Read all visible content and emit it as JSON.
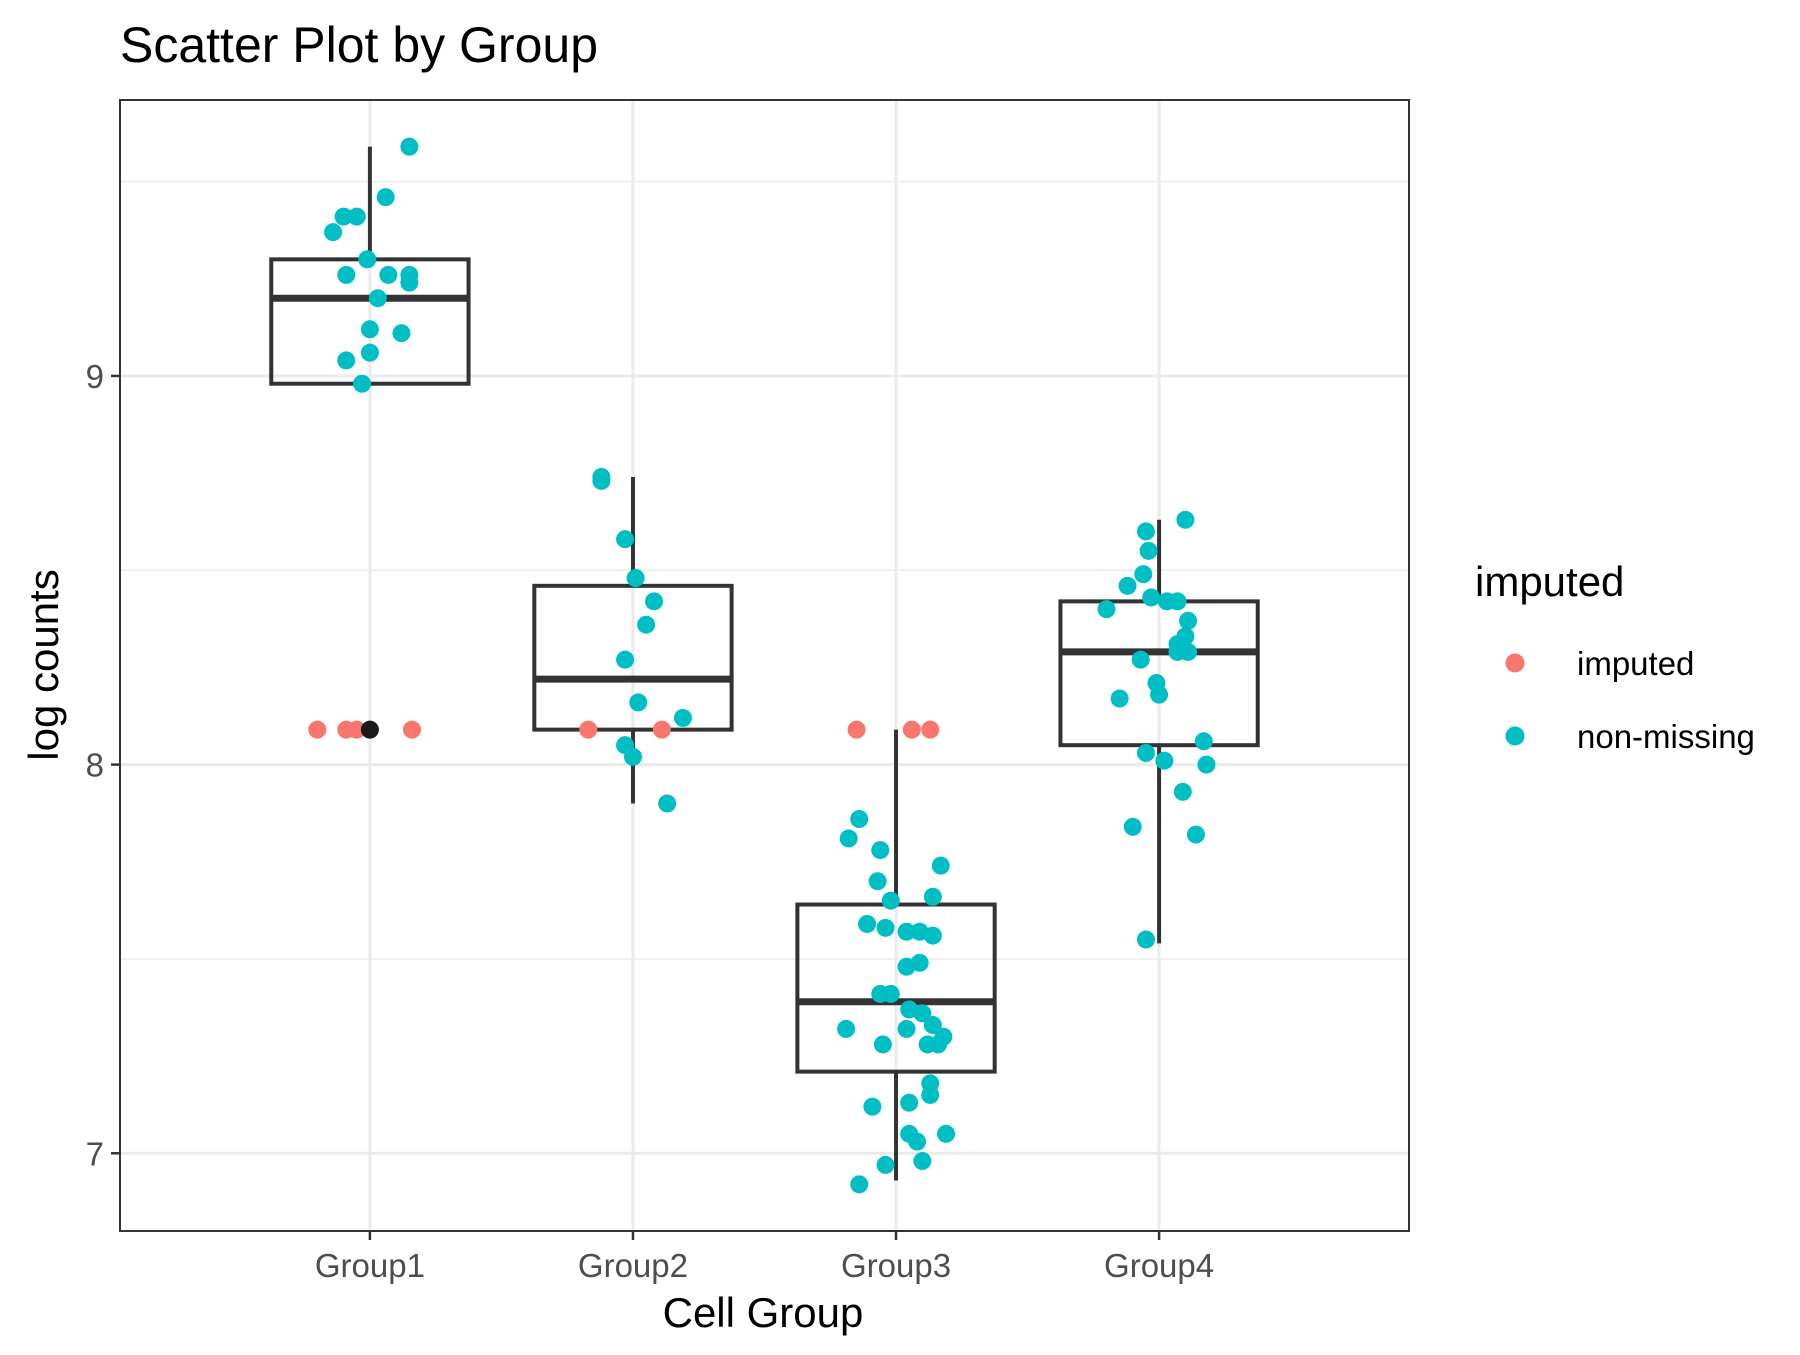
{
  "chart_data": {
    "type": "scatter",
    "title": "Scatter Plot by Group",
    "xlabel": "Cell Group",
    "ylabel": "log counts",
    "categories": [
      "Group1",
      "Group2",
      "Group3",
      "Group4"
    ],
    "ylim": [
      6.8,
      9.71
    ],
    "yticks": [
      7,
      8,
      9
    ],
    "ytick_labels": [
      "7",
      "8",
      "9"
    ],
    "grid": true,
    "legend": {
      "title": "imputed",
      "position": "right",
      "entries": [
        {
          "label": "imputed",
          "color": "#F8766D"
        },
        {
          "label": "non-missing",
          "color": "#00BFC4"
        }
      ]
    },
    "boxplots": [
      {
        "group": "Group1",
        "whisker_low": 8.98,
        "q1": 8.98,
        "median": 9.2,
        "q3": 9.3,
        "whisker_high": 9.59
      },
      {
        "group": "Group2",
        "whisker_low": 7.9,
        "q1": 8.09,
        "median": 8.22,
        "q3": 8.46,
        "whisker_high": 8.74
      },
      {
        "group": "Group3",
        "whisker_low": 6.93,
        "q1": 7.21,
        "median": 7.39,
        "q3": 7.64,
        "whisker_high": 8.09
      },
      {
        "group": "Group4",
        "whisker_low": 7.54,
        "q1": 8.05,
        "median": 8.29,
        "q3": 8.42,
        "whisker_high": 8.63
      }
    ],
    "outliers": [
      {
        "group": "Group1",
        "y": 8.09,
        "color": "#1a1a1a"
      }
    ],
    "series": [
      {
        "name": "imputed",
        "color": "#F8766D",
        "points": [
          {
            "group": "Group1",
            "jitter": -0.2,
            "y": 8.09
          },
          {
            "group": "Group1",
            "jitter": -0.09,
            "y": 8.09
          },
          {
            "group": "Group1",
            "jitter": -0.05,
            "y": 8.09
          },
          {
            "group": "Group1",
            "jitter": 0.16,
            "y": 8.09
          },
          {
            "group": "Group2",
            "jitter": -0.17,
            "y": 8.09
          },
          {
            "group": "Group2",
            "jitter": 0.11,
            "y": 8.09
          },
          {
            "group": "Group3",
            "jitter": -0.15,
            "y": 8.09
          },
          {
            "group": "Group3",
            "jitter": 0.06,
            "y": 8.09
          },
          {
            "group": "Group3",
            "jitter": 0.13,
            "y": 8.09
          }
        ]
      },
      {
        "name": "non-missing",
        "color": "#00BFC4",
        "points": [
          {
            "group": "Group1",
            "jitter": 0.15,
            "y": 9.59
          },
          {
            "group": "Group1",
            "jitter": 0.06,
            "y": 9.46
          },
          {
            "group": "Group1",
            "jitter": -0.1,
            "y": 9.41
          },
          {
            "group": "Group1",
            "jitter": -0.05,
            "y": 9.41
          },
          {
            "group": "Group1",
            "jitter": -0.14,
            "y": 9.37
          },
          {
            "group": "Group1",
            "jitter": -0.01,
            "y": 9.3
          },
          {
            "group": "Group1",
            "jitter": -0.09,
            "y": 9.26
          },
          {
            "group": "Group1",
            "jitter": 0.07,
            "y": 9.26
          },
          {
            "group": "Group1",
            "jitter": 0.15,
            "y": 9.26
          },
          {
            "group": "Group1",
            "jitter": 0.15,
            "y": 9.24
          },
          {
            "group": "Group1",
            "jitter": 0.03,
            "y": 9.2
          },
          {
            "group": "Group1",
            "jitter": 0.0,
            "y": 9.12
          },
          {
            "group": "Group1",
            "jitter": 0.12,
            "y": 9.11
          },
          {
            "group": "Group1",
            "jitter": 0.0,
            "y": 9.06
          },
          {
            "group": "Group1",
            "jitter": -0.09,
            "y": 9.04
          },
          {
            "group": "Group1",
            "jitter": -0.03,
            "y": 8.98
          },
          {
            "group": "Group2",
            "jitter": -0.12,
            "y": 8.74
          },
          {
            "group": "Group2",
            "jitter": -0.12,
            "y": 8.73
          },
          {
            "group": "Group2",
            "jitter": -0.03,
            "y": 8.58
          },
          {
            "group": "Group2",
            "jitter": 0.01,
            "y": 8.48
          },
          {
            "group": "Group2",
            "jitter": 0.08,
            "y": 8.42
          },
          {
            "group": "Group2",
            "jitter": 0.05,
            "y": 8.36
          },
          {
            "group": "Group2",
            "jitter": -0.03,
            "y": 8.27
          },
          {
            "group": "Group2",
            "jitter": 0.02,
            "y": 8.16
          },
          {
            "group": "Group2",
            "jitter": 0.19,
            "y": 8.12
          },
          {
            "group": "Group2",
            "jitter": -0.03,
            "y": 8.05
          },
          {
            "group": "Group2",
            "jitter": 0.0,
            "y": 8.02
          },
          {
            "group": "Group2",
            "jitter": 0.13,
            "y": 7.9
          },
          {
            "group": "Group3",
            "jitter": -0.14,
            "y": 7.86
          },
          {
            "group": "Group3",
            "jitter": -0.18,
            "y": 7.81
          },
          {
            "group": "Group3",
            "jitter": -0.06,
            "y": 7.78
          },
          {
            "group": "Group3",
            "jitter": 0.17,
            "y": 7.74
          },
          {
            "group": "Group3",
            "jitter": -0.07,
            "y": 7.7
          },
          {
            "group": "Group3",
            "jitter": 0.14,
            "y": 7.66
          },
          {
            "group": "Group3",
            "jitter": -0.02,
            "y": 7.65
          },
          {
            "group": "Group3",
            "jitter": -0.11,
            "y": 7.59
          },
          {
            "group": "Group3",
            "jitter": -0.04,
            "y": 7.58
          },
          {
            "group": "Group3",
            "jitter": 0.04,
            "y": 7.57
          },
          {
            "group": "Group3",
            "jitter": 0.09,
            "y": 7.57
          },
          {
            "group": "Group3",
            "jitter": 0.14,
            "y": 7.56
          },
          {
            "group": "Group3",
            "jitter": 0.04,
            "y": 7.48
          },
          {
            "group": "Group3",
            "jitter": 0.09,
            "y": 7.49
          },
          {
            "group": "Group3",
            "jitter": -0.06,
            "y": 7.41
          },
          {
            "group": "Group3",
            "jitter": -0.02,
            "y": 7.41
          },
          {
            "group": "Group3",
            "jitter": 0.05,
            "y": 7.37
          },
          {
            "group": "Group3",
            "jitter": 0.1,
            "y": 7.36
          },
          {
            "group": "Group3",
            "jitter": 0.14,
            "y": 7.33
          },
          {
            "group": "Group3",
            "jitter": -0.19,
            "y": 7.32
          },
          {
            "group": "Group3",
            "jitter": 0.04,
            "y": 7.32
          },
          {
            "group": "Group3",
            "jitter": 0.18,
            "y": 7.3
          },
          {
            "group": "Group3",
            "jitter": -0.05,
            "y": 7.28
          },
          {
            "group": "Group3",
            "jitter": 0.12,
            "y": 7.28
          },
          {
            "group": "Group3",
            "jitter": 0.16,
            "y": 7.28
          },
          {
            "group": "Group3",
            "jitter": 0.13,
            "y": 7.18
          },
          {
            "group": "Group3",
            "jitter": 0.13,
            "y": 7.15
          },
          {
            "group": "Group3",
            "jitter": 0.05,
            "y": 7.13
          },
          {
            "group": "Group3",
            "jitter": -0.09,
            "y": 7.12
          },
          {
            "group": "Group3",
            "jitter": 0.05,
            "y": 7.05
          },
          {
            "group": "Group3",
            "jitter": 0.08,
            "y": 7.03
          },
          {
            "group": "Group3",
            "jitter": 0.19,
            "y": 7.05
          },
          {
            "group": "Group3",
            "jitter": 0.1,
            "y": 6.98
          },
          {
            "group": "Group3",
            "jitter": -0.04,
            "y": 6.97
          },
          {
            "group": "Group3",
            "jitter": -0.14,
            "y": 6.92
          },
          {
            "group": "Group4",
            "jitter": 0.1,
            "y": 8.63
          },
          {
            "group": "Group4",
            "jitter": -0.05,
            "y": 8.6
          },
          {
            "group": "Group4",
            "jitter": -0.04,
            "y": 8.55
          },
          {
            "group": "Group4",
            "jitter": -0.06,
            "y": 8.49
          },
          {
            "group": "Group4",
            "jitter": -0.12,
            "y": 8.46
          },
          {
            "group": "Group4",
            "jitter": -0.03,
            "y": 8.43
          },
          {
            "group": "Group4",
            "jitter": 0.03,
            "y": 8.42
          },
          {
            "group": "Group4",
            "jitter": 0.07,
            "y": 8.42
          },
          {
            "group": "Group4",
            "jitter": -0.2,
            "y": 8.4
          },
          {
            "group": "Group4",
            "jitter": 0.11,
            "y": 8.37
          },
          {
            "group": "Group4",
            "jitter": 0.1,
            "y": 8.33
          },
          {
            "group": "Group4",
            "jitter": 0.07,
            "y": 8.31
          },
          {
            "group": "Group4",
            "jitter": 0.07,
            "y": 8.29
          },
          {
            "group": "Group4",
            "jitter": 0.11,
            "y": 8.29
          },
          {
            "group": "Group4",
            "jitter": -0.07,
            "y": 8.27
          },
          {
            "group": "Group4",
            "jitter": -0.01,
            "y": 8.21
          },
          {
            "group": "Group4",
            "jitter": -0.15,
            "y": 8.17
          },
          {
            "group": "Group4",
            "jitter": 0.0,
            "y": 8.18
          },
          {
            "group": "Group4",
            "jitter": 0.17,
            "y": 8.06
          },
          {
            "group": "Group4",
            "jitter": -0.05,
            "y": 8.03
          },
          {
            "group": "Group4",
            "jitter": 0.02,
            "y": 8.01
          },
          {
            "group": "Group4",
            "jitter": 0.18,
            "y": 8.0
          },
          {
            "group": "Group4",
            "jitter": 0.09,
            "y": 7.93
          },
          {
            "group": "Group4",
            "jitter": -0.1,
            "y": 7.84
          },
          {
            "group": "Group4",
            "jitter": 0.14,
            "y": 7.82
          },
          {
            "group": "Group4",
            "jitter": -0.05,
            "y": 7.55
          }
        ]
      }
    ]
  }
}
